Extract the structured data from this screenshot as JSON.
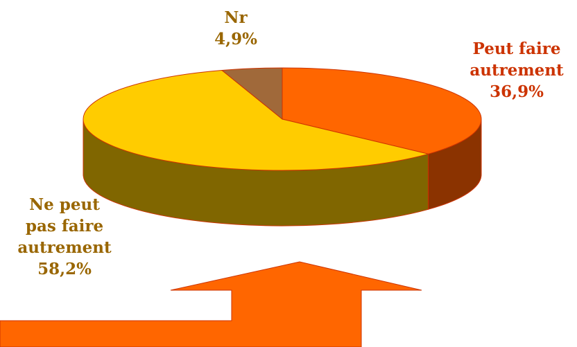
{
  "chart_data": {
    "type": "pie",
    "style": "3d",
    "slices": [
      {
        "label_lines": [
          "Peut faire",
          "autrement"
        ],
        "percent": "36,9%",
        "value": 36.9,
        "color": "#FF6600",
        "side_color": "#8B3300"
      },
      {
        "label_lines": [
          "Ne peut",
          "pas faire",
          "autrement"
        ],
        "percent": "58,2%",
        "value": 58.2,
        "color": "#FFCC00",
        "side_color": "#806600"
      },
      {
        "label_lines": [
          "Nr"
        ],
        "percent": "4,9%",
        "value": 4.9,
        "color": "#A0693A",
        "side_color": "#5A3A1E"
      }
    ],
    "label_colors": {
      "Peut faire autrement": "#CC3300",
      "Ne peut pas faire autrement": "#996600",
      "Nr": "#996600"
    },
    "outline_color": "#CC3300",
    "arrow_color": "#FF6600"
  }
}
